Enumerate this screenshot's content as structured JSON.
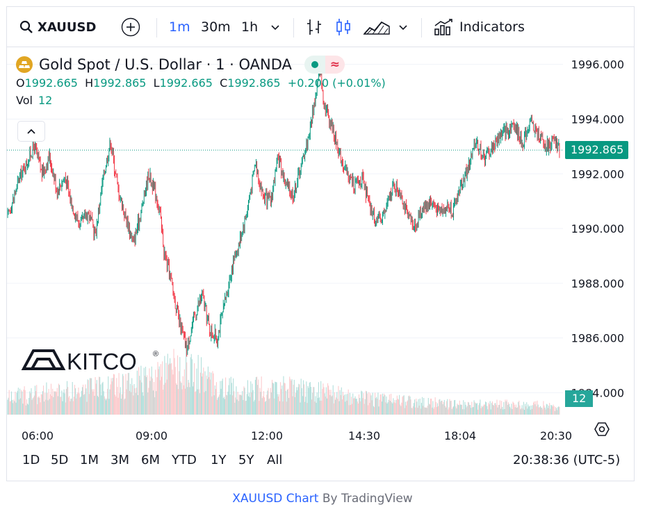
{
  "toolbar": {
    "symbol": "XAUUSD",
    "intervals": [
      "1m",
      "30m",
      "1h"
    ],
    "active_interval": "1m",
    "indicators_label": "Indicators",
    "icons": [
      "search-icon",
      "add-symbol-icon",
      "chevron-down-icon",
      "bar-style-icon",
      "candle-style-icon",
      "area-style-icon",
      "chevron-down-icon",
      "indicators-icon"
    ]
  },
  "legend": {
    "title": "Gold Spot / U.S. Dollar · 1 · OANDA",
    "o_label": "O",
    "o_value": "1992.665",
    "h_label": "H",
    "h_value": "1992.865",
    "l_label": "L",
    "l_value": "1992.665",
    "c_label": "C",
    "c_value": "1992.865",
    "change": "+0.200 (+0.01%)",
    "vol_label": "Vol",
    "vol_value": "12",
    "pill_right": "≈"
  },
  "watermark": {
    "brand": "KITCO",
    "mark": "®"
  },
  "chart_data": {
    "type": "candlestick",
    "symbol": "XAUUSD",
    "x_ticks": [
      "06:00",
      "09:00",
      "12:00",
      "14:30",
      "18:04",
      "20:30"
    ],
    "y_ticks": [
      "1996.000",
      "1994.000",
      "1992.000",
      "1990.000",
      "1988.000",
      "1986.000",
      "1984.000"
    ],
    "ylim": [
      1983.2,
      1996.6
    ],
    "last_price": "1992.865",
    "last_volume": "12",
    "price_path": [
      [
        0,
        1990.4
      ],
      [
        3,
        1991.8
      ],
      [
        5,
        1992.4
      ],
      [
        7,
        1993.0
      ],
      [
        9,
        1992.0
      ],
      [
        11,
        1992.6
      ],
      [
        13,
        1991.4
      ],
      [
        15,
        1991.9
      ],
      [
        17,
        1990.8
      ],
      [
        19,
        1990.1
      ],
      [
        21,
        1990.6
      ],
      [
        23,
        1989.8
      ],
      [
        25,
        1991.8
      ],
      [
        27,
        1993.2
      ],
      [
        29,
        1991.4
      ],
      [
        31,
        1990.4
      ],
      [
        33,
        1989.5
      ],
      [
        35,
        1990.6
      ],
      [
        37,
        1992.0
      ],
      [
        39,
        1991.2
      ],
      [
        40,
        1990.5
      ],
      [
        41,
        1989.2
      ],
      [
        43,
        1988.0
      ],
      [
        45,
        1986.6
      ],
      [
        47,
        1985.6
      ],
      [
        49,
        1986.8
      ],
      [
        51,
        1987.6
      ],
      [
        53,
        1986.3
      ],
      [
        55,
        1986.0
      ],
      [
        57,
        1987.3
      ],
      [
        59,
        1988.7
      ],
      [
        61,
        1989.6
      ],
      [
        63,
        1990.8
      ],
      [
        65,
        1992.4
      ],
      [
        67,
        1991.2
      ],
      [
        69,
        1991.0
      ],
      [
        71,
        1992.6
      ],
      [
        73,
        1991.6
      ],
      [
        75,
        1991.2
      ],
      [
        77,
        1992.3
      ],
      [
        79,
        1993.4
      ],
      [
        81,
        1995.0
      ],
      [
        82,
        1995.8
      ],
      [
        83,
        1994.6
      ],
      [
        85,
        1993.8
      ],
      [
        87,
        1992.8
      ],
      [
        89,
        1992.0
      ],
      [
        91,
        1991.6
      ],
      [
        93,
        1991.8
      ],
      [
        95,
        1990.8
      ],
      [
        97,
        1990.2
      ],
      [
        99,
        1990.6
      ],
      [
        101,
        1991.5
      ],
      [
        103,
        1991.4
      ],
      [
        105,
        1990.4
      ],
      [
        107,
        1990.1
      ],
      [
        109,
        1990.8
      ],
      [
        111,
        1991.0
      ],
      [
        113,
        1990.6
      ],
      [
        115,
        1990.8
      ],
      [
        117,
        1990.7
      ],
      [
        119,
        1991.6
      ],
      [
        121,
        1992.3
      ],
      [
        123,
        1993.2
      ],
      [
        125,
        1992.6
      ],
      [
        127,
        1992.9
      ],
      [
        129,
        1993.4
      ],
      [
        131,
        1993.6
      ],
      [
        133,
        1993.8
      ],
      [
        135,
        1993.1
      ],
      [
        137,
        1993.9
      ],
      [
        139,
        1993.5
      ],
      [
        141,
        1993.0
      ],
      [
        143,
        1993.2
      ],
      [
        145,
        1992.9
      ]
    ],
    "volume_profile": [
      [
        0,
        0.35
      ],
      [
        10,
        0.45
      ],
      [
        20,
        0.5
      ],
      [
        30,
        0.6
      ],
      [
        40,
        0.75
      ],
      [
        45,
        1.0
      ],
      [
        50,
        0.85
      ],
      [
        55,
        0.6
      ],
      [
        60,
        0.5
      ],
      [
        70,
        0.55
      ],
      [
        80,
        0.5
      ],
      [
        90,
        0.35
      ],
      [
        100,
        0.3
      ],
      [
        110,
        0.25
      ],
      [
        120,
        0.2
      ],
      [
        130,
        0.22
      ],
      [
        140,
        0.2
      ],
      [
        145,
        0.12
      ]
    ]
  },
  "range": {
    "buttons": [
      "1D",
      "5D",
      "1M",
      "3M",
      "6M",
      "YTD",
      "1Y",
      "5Y",
      "All"
    ],
    "clock": "20:38:36 (UTC-5)"
  },
  "footer": {
    "symbol_link": "XAUUSD Chart",
    "by": " By ",
    "tv": "TradingView"
  },
  "colors": {
    "up": "#089981",
    "down": "#f23645",
    "accent": "#2962ff",
    "vol_up": "#b2dfdb",
    "vol_down": "#fccbcd"
  }
}
